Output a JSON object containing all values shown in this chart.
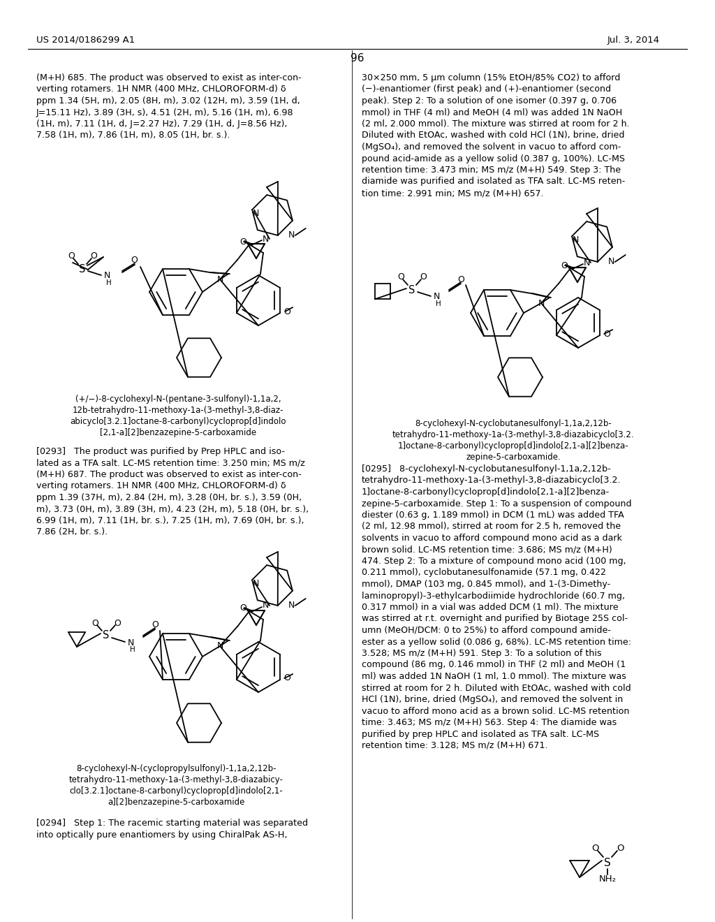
{
  "page_header_left": "US 2014/0186299 A1",
  "page_header_right": "Jul. 3, 2014",
  "page_number": "96",
  "bg_color": "#ffffff",
  "col1_text1": "(M+H) 685. The product was observed to exist as inter-con-\nverting rotamers. 1H NMR (400 MHz, CHLOROFORM-d) δ\nppm 1.34 (5H, m), 2.05 (8H, m), 3.02 (12H, m), 3.59 (1H, d,\nJ=15.11 Hz), 3.89 (3H, s), 4.51 (2H, m), 5.16 (1H, m), 6.98\n(1H, m), 7.11 (1H, d, J=2.27 Hz), 7.29 (1H, d, J=8.56 Hz),\n7.58 (1H, m), 7.86 (1H, m), 8.05 (1H, br. s.).",
  "struct1_caption": "(+/−)-8-cyclohexyl-N-(pentane-3-sulfonyl)-1,1a,2,\n12b-tetrahydro-11-methoxy-1a-(3-methyl-3,8-diaz-\nabicyclo[3.2.1]octane-8-carbonyl)cycloprop[d]indolo\n[2,1-a][2]benzazepine-5-carboxamide",
  "para0293": "[0293]   The product was purified by Prep HPLC and iso-\nlated as a TFA salt. LC-MS retention time: 3.250 min; MS m/z\n(M+H) 687. The product was observed to exist as inter-con-\nverting rotamers. 1H NMR (400 MHz, CHLOROFORM-d) δ\nppm 1.39 (37H, m), 2.84 (2H, m), 3.28 (0H, br. s.), 3.59 (0H,\nm), 3.73 (0H, m), 3.89 (3H, m), 4.23 (2H, m), 5.18 (0H, br. s.),\n6.99 (1H, m), 7.11 (1H, br. s.), 7.25 (1H, m), 7.69 (0H, br. s.),\n7.86 (2H, br. s.).",
  "struct2_caption": "8-cyclohexyl-N-(cyclopropylsulfonyl)-1,1a,2,12b-\ntetrahydro-11-methoxy-1a-(3-methyl-3,8-diazabicy-\nclo[3.2.1]octane-8-carbonyl)cycloprop[d]indolo[2,1-\na][2]benzazepine-5-carboxamide",
  "para0294": "[0294]   Step 1: The racemic starting material was separated\ninto optically pure enantiomers by using ChiralPak AS-H,",
  "col2_text1": "30×250 mm, 5 μm column (15% EtOH/85% CO2) to afford\n(−)-enantiomer (first peak) and (+)-enantiomer (second\npeak). Step 2: To a solution of one isomer (0.397 g, 0.706\nmmol) in THF (4 ml) and MeOH (4 ml) was added 1N NaOH\n(2 ml, 2.000 mmol). The mixture was stirred at room for 2 h.\nDiluted with EtOAc, washed with cold HCl (1N), brine, dried\n(MgSO₄), and removed the solvent in vacuo to afford com-\npound acid-amide as a yellow solid (0.387 g, 100%). LC-MS\nretention time: 3.473 min; MS m/z (M+H) 549. Step 3: The\ndiamide was purified and isolated as TFA salt. LC-MS reten-\ntion time: 2.991 min; MS m/z (M+H) 657.",
  "struct3_caption_right": "8-cyclohexyl-N-cyclobutanesulfonyl-1,1a,2,12b-\ntetrahydro-11-methoxy-1a-(3-methyl-3,8-diazabicyclo[3.2.\n1]octane-8-carbonyl)cycloprop[d]indolo[2,1-a][2]benza-\nzepine-5-carboxamide.",
  "para0295": "[0295]   8-cyclohexyl-N-cyclobutanesulfonyl-1,1a,2,12b-\ntetrahydro-11-methoxy-1a-(3-methyl-3,8-diazabicyclo[3.2.\n1]octane-8-carbonyl)cycloprop[d]indolo[2,1-a][2]benza-\nzepine-5-carboxamide. Step 1: To a suspension of compound\ndiester (0.63 g, 1.189 mmol) in DCM (1 mL) was added TFA\n(2 ml, 12.98 mmol), stirred at room for 2.5 h, removed the\nsolvents in vacuo to afford compound mono acid as a dark\nbrown solid. LC-MS retention time: 3.686; MS m/z (M+H)\n474. Step 2: To a mixture of compound mono acid (100 mg,\n0.211 mmol), cyclobutanesulfonamide (57.1 mg, 0.422\nmmol), DMAP (103 mg, 0.845 mmol), and 1-(3-Dimethy-\nlaminopropyl)-3-ethylcarbodiimide hydrochloride (60.7 mg,\n0.317 mmol) in a vial was added DCM (1 ml). The mixture\nwas stirred at r.t. overnight and purified by Biotage 25S col-\numn (MeOH/DCM: 0 to 25%) to afford compound amide-\nester as a yellow solid (0.086 g, 68%). LC-MS retention time:\n3.528; MS m/z (M+H) 591. Step 3: To a solution of this\ncompound (86 mg, 0.146 mmol) in THF (2 ml) and MeOH (1\nml) was added 1N NaOH (1 ml, 1.0 mmol). The mixture was\nstirred at room for 2 h. Diluted with EtOAc, washed with cold\nHCl (1N), brine, dried (MgSO₄), and removed the solvent in\nvacuo to afford mono acid as a brown solid. LC-MS retention\ntime: 3.463; MS m/z (M+H) 563. Step 4: The diamide was\npurified by prep HPLC and isolated as TFA salt. LC-MS\nretention time: 3.128; MS m/z (M+H) 671."
}
